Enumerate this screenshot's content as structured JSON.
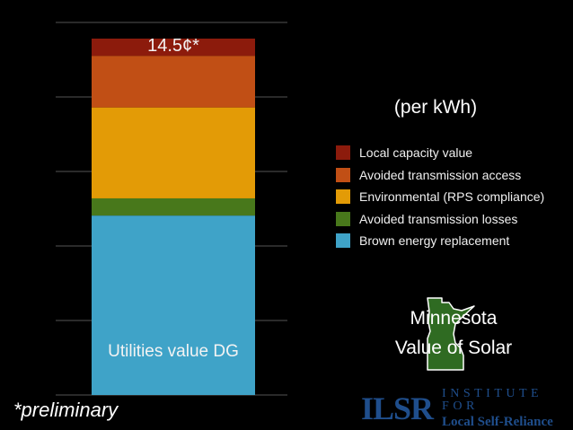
{
  "chart_data": {
    "type": "bar",
    "stacked": true,
    "categories": [
      "Utilities value DG"
    ],
    "ylim": [
      0,
      14.5
    ],
    "grid": true,
    "total_label": "14.5¢*",
    "unit_note": "(per kWh)",
    "legend_position": "right",
    "series": [
      {
        "name": "Local capacity value",
        "values": [
          0.7
        ],
        "color": "#8c1b0c"
      },
      {
        "name": "Avoided transmission access",
        "values": [
          2.1
        ],
        "color": "#c14f15"
      },
      {
        "name": "Environmental (RPS compliance)",
        "values": [
          3.7
        ],
        "color": "#e39b06"
      },
      {
        "name": "Avoided transmission losses",
        "values": [
          0.7
        ],
        "color": "#48781b"
      },
      {
        "name": "Brown energy replacement",
        "values": [
          7.3
        ],
        "color": "#3fa3c8"
      }
    ]
  },
  "title_block": {
    "line1": "Minnesota",
    "line2": "Value of Solar"
  },
  "footnote": "*preliminary",
  "logo": {
    "mark": "ILSR",
    "line1": "INSTITUTE FOR",
    "line2": "Local Self-Reliance"
  },
  "colors": {
    "background": "#000000",
    "grid": "#555555",
    "minnesota_fill": "#2f6b22",
    "logo": "#1f4e8c"
  }
}
